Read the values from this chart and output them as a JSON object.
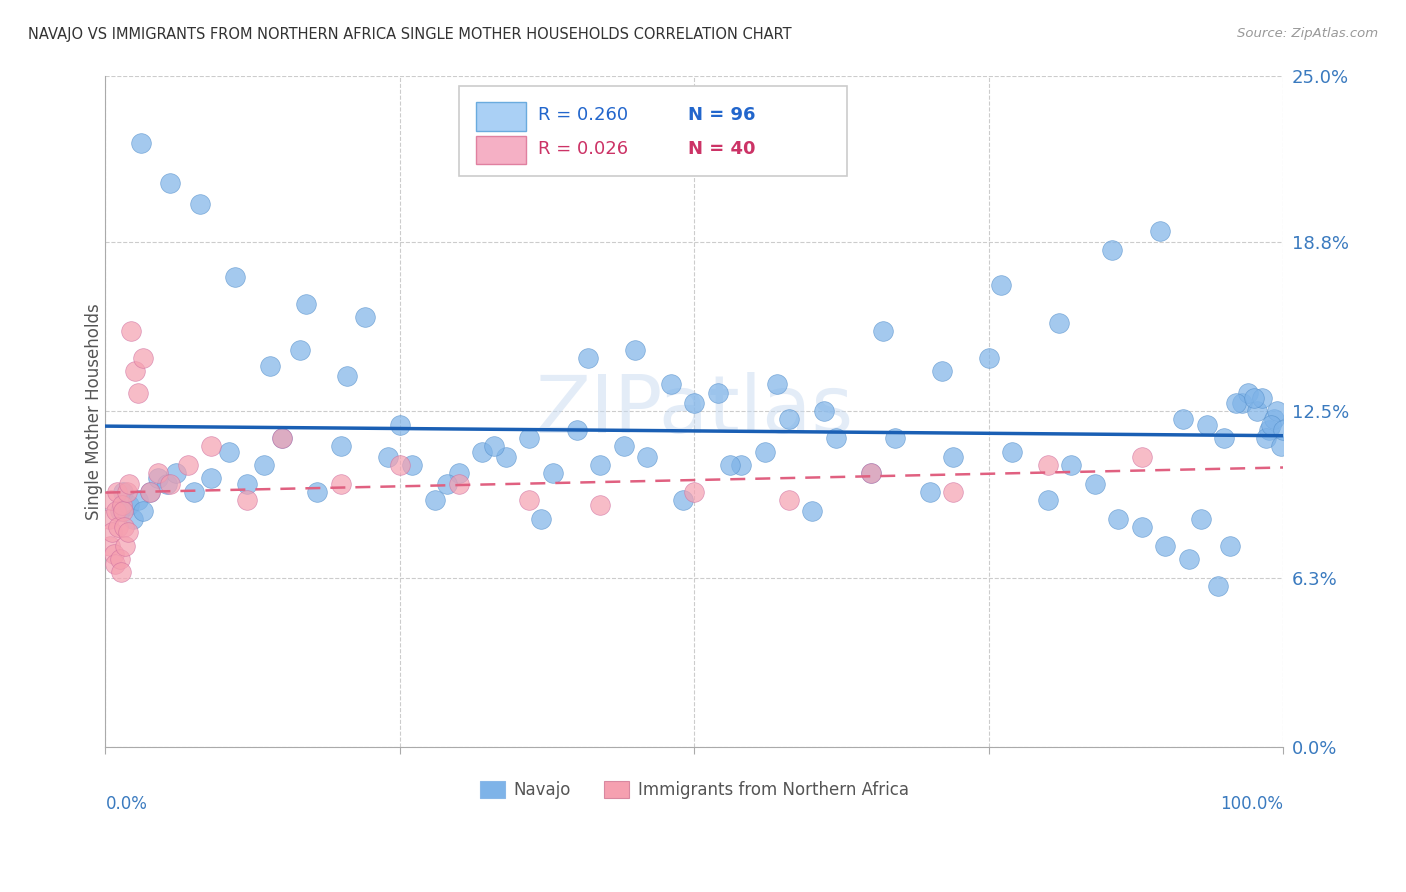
{
  "title": "NAVAJO VS IMMIGRANTS FROM NORTHERN AFRICA SINGLE MOTHER HOUSEHOLDS CORRELATION CHART",
  "source": "Source: ZipAtlas.com",
  "ylabel": "Single Mother Households",
  "ytick_values": [
    0.0,
    6.3,
    12.5,
    18.8,
    25.0
  ],
  "xlim": [
    0,
    100
  ],
  "ylim": [
    0,
    25
  ],
  "navajo_color": "#7eb3e8",
  "immigrants_color": "#f5a0b0",
  "navajo_line_color": "#1a5fb4",
  "immigrants_line_color": "#e06080",
  "navajo_x": [
    1.2,
    1.5,
    2.0,
    2.3,
    2.8,
    3.2,
    3.8,
    4.5,
    5.2,
    6.0,
    7.5,
    9.0,
    10.5,
    12.0,
    13.5,
    15.0,
    16.5,
    18.0,
    20.0,
    22.0,
    24.0,
    26.0,
    28.0,
    30.0,
    32.0,
    34.0,
    36.0,
    38.0,
    40.0,
    42.0,
    44.0,
    46.0,
    48.0,
    50.0,
    52.0,
    54.0,
    56.0,
    58.0,
    60.0,
    62.0,
    65.0,
    67.0,
    70.0,
    72.0,
    75.0,
    77.0,
    80.0,
    82.0,
    84.0,
    86.0,
    88.0,
    90.0,
    92.0,
    93.0,
    94.5,
    95.5,
    96.5,
    97.0,
    97.8,
    98.2,
    98.8,
    99.2,
    99.5,
    3.0,
    5.5,
    8.0,
    11.0,
    14.0,
    17.0,
    20.5,
    25.0,
    29.0,
    33.0,
    37.0,
    41.0,
    45.0,
    49.0,
    53.0,
    57.0,
    61.0,
    66.0,
    71.0,
    76.0,
    81.0,
    85.5,
    89.5,
    91.5,
    93.5,
    95.0,
    96.0,
    97.5,
    98.5,
    99.0,
    99.8,
    100.0
  ],
  "navajo_y": [
    8.8,
    9.5,
    9.0,
    8.5,
    9.2,
    8.8,
    9.5,
    10.0,
    9.8,
    10.2,
    9.5,
    10.0,
    11.0,
    9.8,
    10.5,
    11.5,
    14.8,
    9.5,
    11.2,
    16.0,
    10.8,
    10.5,
    9.2,
    10.2,
    11.0,
    10.8,
    11.5,
    10.2,
    11.8,
    10.5,
    11.2,
    10.8,
    13.5,
    12.8,
    13.2,
    10.5,
    11.0,
    12.2,
    8.8,
    11.5,
    10.2,
    11.5,
    9.5,
    10.8,
    14.5,
    11.0,
    9.2,
    10.5,
    9.8,
    8.5,
    8.2,
    7.5,
    7.0,
    8.5,
    6.0,
    7.5,
    12.8,
    13.2,
    12.5,
    13.0,
    11.8,
    12.2,
    12.5,
    22.5,
    21.0,
    20.2,
    17.5,
    14.2,
    16.5,
    13.8,
    12.0,
    9.8,
    11.2,
    8.5,
    14.5,
    14.8,
    9.2,
    10.5,
    13.5,
    12.5,
    15.5,
    14.0,
    17.2,
    15.8,
    18.5,
    19.2,
    12.2,
    12.0,
    11.5,
    12.8,
    13.0,
    11.5,
    12.0,
    11.2,
    11.8
  ],
  "immigrants_x": [
    0.3,
    0.4,
    0.5,
    0.6,
    0.7,
    0.8,
    0.9,
    1.0,
    1.1,
    1.2,
    1.3,
    1.4,
    1.5,
    1.6,
    1.7,
    1.8,
    1.9,
    2.0,
    2.2,
    2.5,
    2.8,
    3.2,
    3.8,
    4.5,
    5.5,
    7.0,
    9.0,
    12.0,
    15.0,
    20.0,
    25.0,
    30.0,
    36.0,
    42.0,
    50.0,
    58.0,
    65.0,
    72.0,
    80.0,
    88.0
  ],
  "immigrants_y": [
    8.5,
    7.5,
    9.2,
    8.0,
    7.2,
    6.8,
    8.8,
    9.5,
    8.2,
    7.0,
    6.5,
    9.0,
    8.8,
    8.2,
    7.5,
    9.5,
    8.0,
    9.8,
    15.5,
    14.0,
    13.2,
    14.5,
    9.5,
    10.2,
    9.8,
    10.5,
    11.2,
    9.2,
    11.5,
    9.8,
    10.5,
    9.8,
    9.2,
    9.0,
    9.5,
    9.2,
    10.2,
    9.5,
    10.5,
    10.8
  ]
}
